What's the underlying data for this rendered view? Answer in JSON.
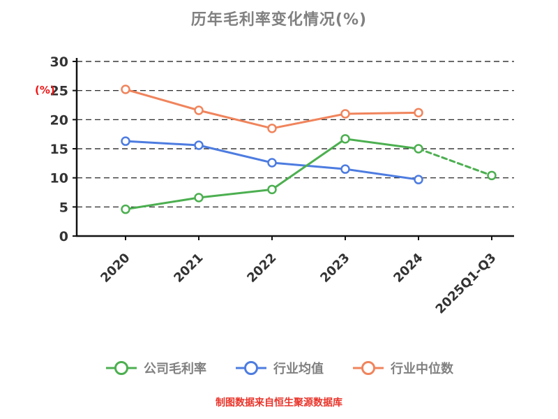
{
  "title": "历年毛利率变化情况(%)",
  "source_note": "制图数据来自恒生聚源数据库",
  "chart_data": {
    "type": "line",
    "title": "历年毛利率变化情况(%)",
    "xlabel": "",
    "ylabel": "(%)",
    "ylim": [
      0,
      30
    ],
    "yticks": [
      0,
      5,
      10,
      15,
      20,
      25,
      30
    ],
    "grid": "horizontal dashed black lines",
    "legend_position": "bottom",
    "background": "#ffffff",
    "categories": [
      "2020",
      "2021",
      "2022",
      "2023",
      "2024",
      "2025Q1-Q3"
    ],
    "series": [
      {
        "name": "公司毛利率",
        "color": "#4caf50",
        "marker": "open-circle",
        "values": [
          4.6,
          6.6,
          8.0,
          16.7,
          15.0,
          10.4
        ],
        "dashed_from_index": 4
      },
      {
        "name": "行业均值",
        "color": "#4d7ce0",
        "marker": "open-circle",
        "values": [
          16.3,
          15.6,
          12.6,
          11.5,
          9.7,
          null
        ]
      },
      {
        "name": "行业中位数",
        "color": "#f0845c",
        "marker": "open-circle",
        "values": [
          25.2,
          21.6,
          18.5,
          21.0,
          21.2,
          null
        ]
      }
    ],
    "colors": {
      "title_text": "#808080",
      "axis": "#111111",
      "tick_label": "#333333",
      "ylabel_text": "#f01515",
      "legend_label": "#808080",
      "source_note_text": "#e8342a"
    }
  }
}
